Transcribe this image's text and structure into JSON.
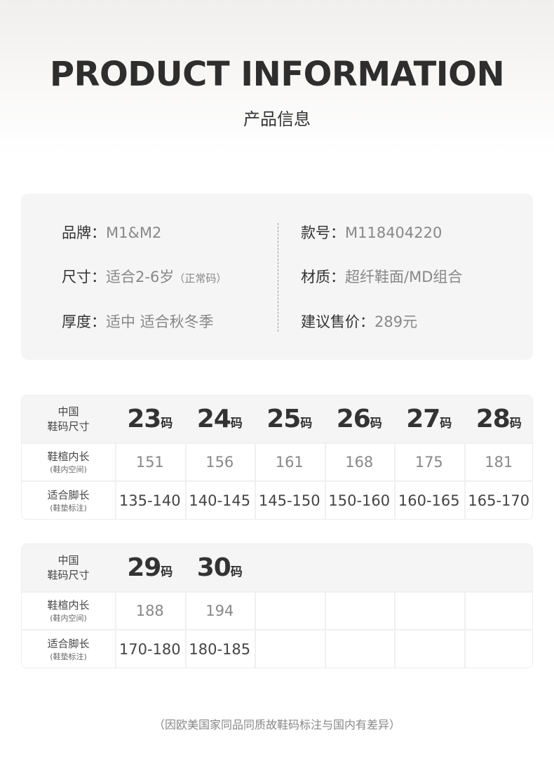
{
  "header": {
    "title": "PRODUCT INFORMATION",
    "subtitle": "产品信息"
  },
  "info": {
    "left": [
      {
        "key": "品牌：",
        "value": "M1&M2",
        "suffix": ""
      },
      {
        "key": "尺寸：",
        "value": "适合2-6岁",
        "suffix": "（正常码）"
      },
      {
        "key": "厚度：",
        "value": "适中 适合秋冬季",
        "suffix": ""
      }
    ],
    "right": [
      {
        "key": "款号：",
        "value": "M118404220"
      },
      {
        "key": "材质：",
        "value": "超纤鞋面/MD组合"
      },
      {
        "key": "建议售价：",
        "value": "289元"
      }
    ]
  },
  "size_table": {
    "header_label": [
      "中国",
      "鞋码尺寸"
    ],
    "row1_label": [
      "鞋楦内长",
      "(鞋内空间)"
    ],
    "row2_label": [
      "适合脚长",
      "(鞋垫标注)"
    ],
    "unit": "码",
    "tables": [
      {
        "sizes": [
          "23",
          "24",
          "25",
          "26",
          "27",
          "28"
        ],
        "inner": [
          "151",
          "156",
          "161",
          "168",
          "175",
          "181"
        ],
        "foot": [
          "135-140",
          "140-145",
          "145-150",
          "150-160",
          "160-165",
          "165-170"
        ]
      },
      {
        "sizes": [
          "29",
          "30"
        ],
        "inner": [
          "188",
          "194"
        ],
        "foot": [
          "170-180",
          "180-185"
        ]
      }
    ]
  },
  "footnote": "（因欧美国家同品同质故鞋码标注与国内有差异）"
}
